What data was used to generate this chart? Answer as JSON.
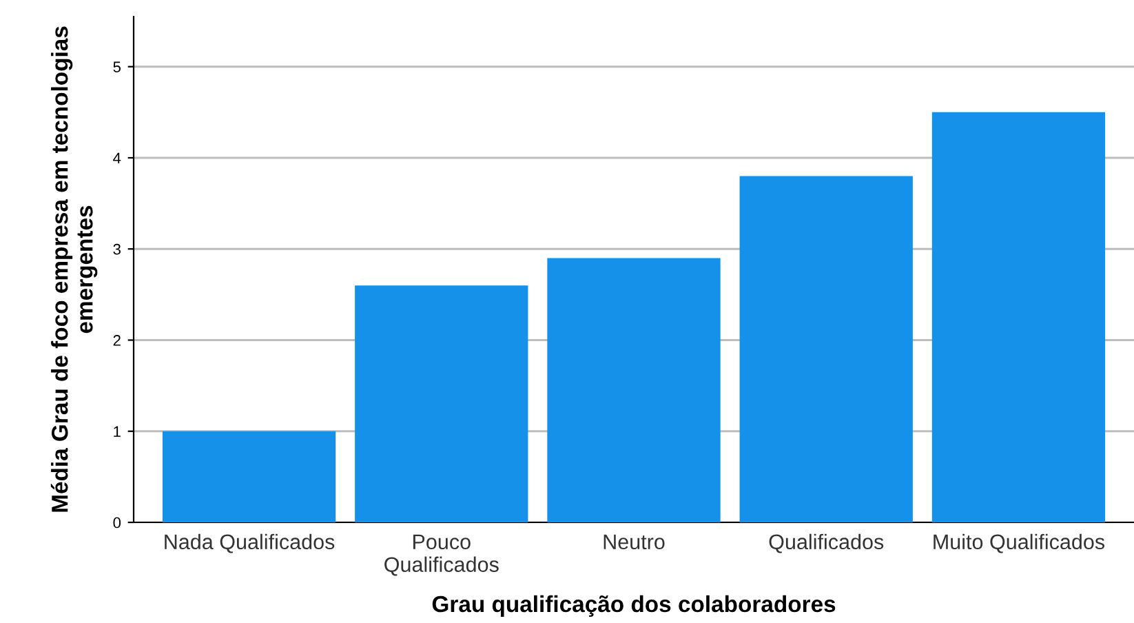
{
  "chart_data": {
    "type": "bar",
    "xlabel": "Grau qualificação dos colaboradores",
    "ylabel": "Média Grau de foco empresa em tecnologias\nemergentes",
    "categories": [
      "Nada Qualificados",
      "Pouco\nQualificados",
      "Neutro",
      "Qualificados",
      "Muito Qualificados"
    ],
    "values": [
      1.0,
      2.6,
      2.9,
      3.8,
      4.5
    ],
    "color": "#1591ea",
    "ylim": [
      0,
      5.55
    ],
    "yticks": [
      0,
      1,
      2,
      3,
      4,
      5
    ],
    "grid": "y",
    "legend": false
  }
}
